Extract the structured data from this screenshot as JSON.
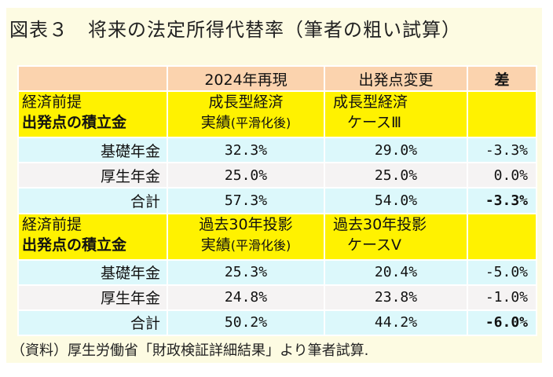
{
  "title": "図表３　将来の法定所得代替率（筆者の粗い試算）",
  "header": {
    "col1": "2024年再現",
    "col2": "出発点変更",
    "col3": "差"
  },
  "block1": {
    "label_line1": "経済前提",
    "label_line2": "出発点の積立金",
    "col1_line1": "成長型経済",
    "col1_line2": "実績",
    "col1_line2_note": "(平滑化後)",
    "col2_line1": "成長型経済",
    "col2_line2": "ケースⅢ",
    "rows": [
      {
        "label": "基礎年金",
        "v1": "32.3%",
        "v2": "29.0%",
        "diff": "-3.3%"
      },
      {
        "label": "厚生年金",
        "v1": "25.0%",
        "v2": "25.0%",
        "diff": "0.0%"
      },
      {
        "label": "合計",
        "v1": "57.3%",
        "v2": "54.0%",
        "diff": "-3.3%"
      }
    ]
  },
  "block2": {
    "label_line1": "経済前提",
    "label_line2": "出発点の積立金",
    "col1_line1": "過去30年投影",
    "col1_line2": "実績",
    "col1_line2_note": "(平滑化後)",
    "col2_line1": "過去30年投影",
    "col2_line2": "ケースⅤ",
    "rows": [
      {
        "label": "基礎年金",
        "v1": "25.3%",
        "v2": "20.4%",
        "diff": "-5.0%"
      },
      {
        "label": "厚生年金",
        "v1": "24.8%",
        "v2": "23.8%",
        "diff": "-1.0%"
      },
      {
        "label": "合計",
        "v1": "50.2%",
        "v2": "44.2%",
        "diff": "-6.0%"
      }
    ]
  },
  "source_note": "（資料）厚生労働省「財政検証詳細結果」より筆者試算."
}
